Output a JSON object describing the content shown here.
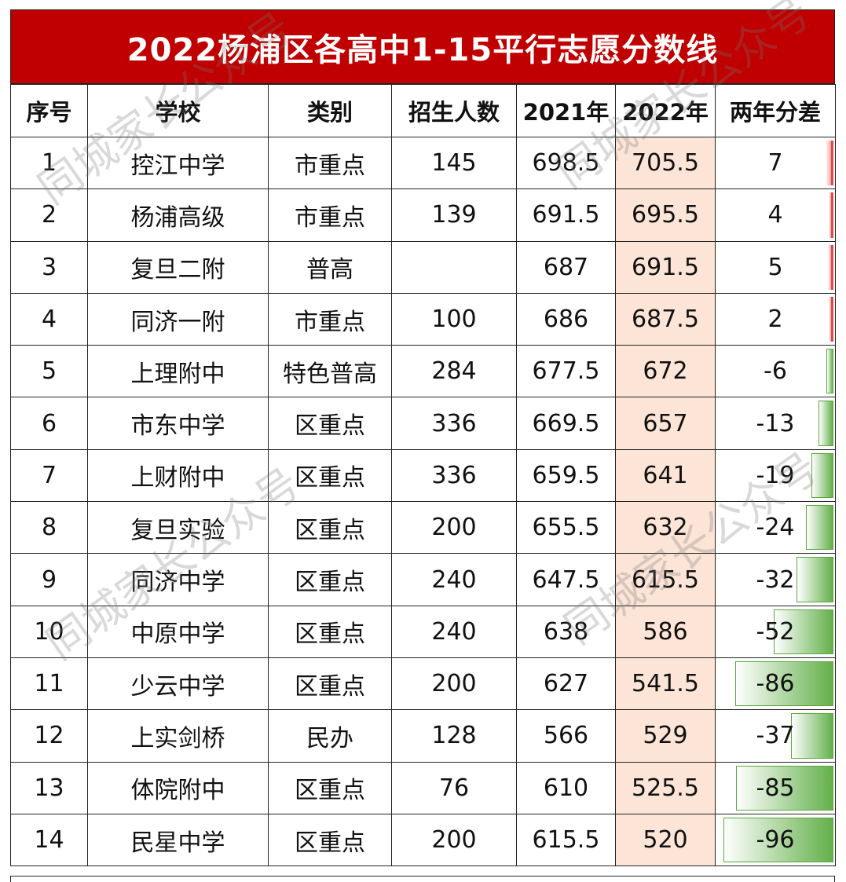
{
  "title": "2022杨浦区各高中1-15平行志愿分数线",
  "headers": [
    "序号",
    "学校",
    "类别",
    "招生人数",
    "2021年",
    "2022年",
    "两年分差"
  ],
  "rows": [
    {
      "no": "1",
      "school": "控江中学",
      "type": "市重点",
      "enroll": "145",
      "y2021": "698.5",
      "y2022": "705.5",
      "diff": "7",
      "diff_value": 7
    },
    {
      "no": "2",
      "school": "杨浦高级",
      "type": "市重点",
      "enroll": "139",
      "y2021": "691.5",
      "y2022": "695.5",
      "diff": "4",
      "diff_value": 4
    },
    {
      "no": "3",
      "school": "复旦二附",
      "type": "普高",
      "enroll": "",
      "y2021": "687",
      "y2022": "691.5",
      "diff": "5",
      "diff_value": 5
    },
    {
      "no": "4",
      "school": "同济一附",
      "type": "市重点",
      "enroll": "100",
      "y2021": "686",
      "y2022": "687.5",
      "diff": "2",
      "diff_value": 2
    },
    {
      "no": "5",
      "school": "上理附中",
      "type": "特色普高",
      "enroll": "284",
      "y2021": "677.5",
      "y2022": "672",
      "diff": "-6",
      "diff_value": -6
    },
    {
      "no": "6",
      "school": "市东中学",
      "type": "区重点",
      "enroll": "336",
      "y2021": "669.5",
      "y2022": "657",
      "diff": "-13",
      "diff_value": -13
    },
    {
      "no": "7",
      "school": "上财附中",
      "type": "区重点",
      "enroll": "336",
      "y2021": "659.5",
      "y2022": "641",
      "diff": "-19",
      "diff_value": -19
    },
    {
      "no": "8",
      "school": "复旦实验",
      "type": "区重点",
      "enroll": "200",
      "y2021": "655.5",
      "y2022": "632",
      "diff": "-24",
      "diff_value": -24
    },
    {
      "no": "9",
      "school": "同济中学",
      "type": "区重点",
      "enroll": "240",
      "y2021": "647.5",
      "y2022": "615.5",
      "diff": "-32",
      "diff_value": -32
    },
    {
      "no": "10",
      "school": "中原中学",
      "type": "区重点",
      "enroll": "240",
      "y2021": "638",
      "y2022": "586",
      "diff": "-52",
      "diff_value": -52
    },
    {
      "no": "11",
      "school": "少云中学",
      "type": "区重点",
      "enroll": "200",
      "y2021": "627",
      "y2022": "541.5",
      "diff": "-86",
      "diff_value": -86
    },
    {
      "no": "12",
      "school": "上实剑桥",
      "type": "民办",
      "enroll": "128",
      "y2021": "566",
      "y2022": "529",
      "diff": "-37",
      "diff_value": -37
    },
    {
      "no": "13",
      "school": "体院附中",
      "type": "区重点",
      "enroll": "76",
      "y2021": "610",
      "y2022": "525.5",
      "diff": "-85",
      "diff_value": -85
    },
    {
      "no": "14",
      "school": "民星中学",
      "type": "区重点",
      "enroll": "200",
      "y2021": "615.5",
      "y2022": "520",
      "diff": "-96",
      "diff_value": -96
    }
  ],
  "diff_max_abs": 96,
  "watermark": "同城家长公众号",
  "colors": {
    "title_bg": "#c00000",
    "highlight_2022": "#fce4d6",
    "bar_positive": "#e04848",
    "bar_negative": "#63b04a"
  }
}
